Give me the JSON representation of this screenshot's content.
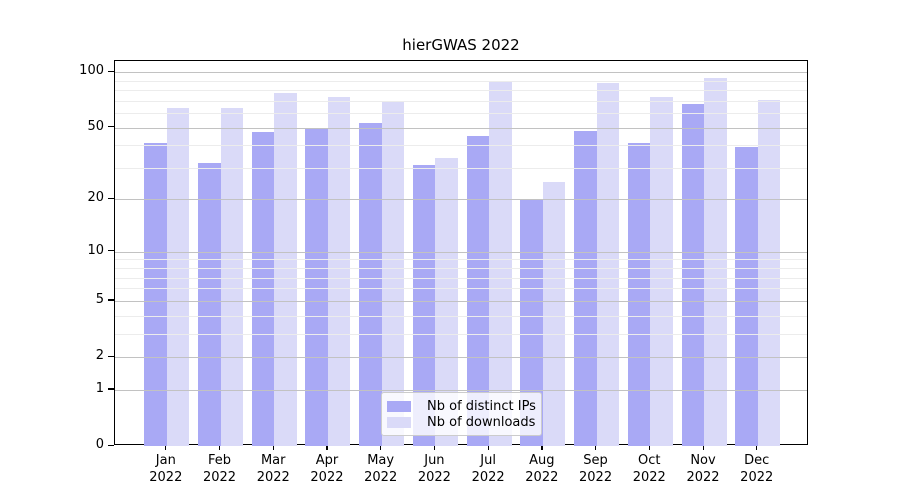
{
  "chart_data": {
    "type": "bar",
    "title": "hierGWAS 2022",
    "categories": [
      "Jan 2022",
      "Feb 2022",
      "Mar 2022",
      "Apr 2022",
      "May 2022",
      "Jun 2022",
      "Jul 2022",
      "Aug 2022",
      "Sep 2022",
      "Oct 2022",
      "Nov 2022",
      "Dec 2022"
    ],
    "series": [
      {
        "name": "Nb of distinct IPs",
        "color": "#a9a9f5",
        "values": [
          41,
          32,
          47,
          49,
          53,
          31,
          45,
          20,
          48,
          41,
          67,
          39
        ]
      },
      {
        "name": "Nb of downloads",
        "color": "#dadaf8",
        "values": [
          64,
          64,
          77,
          73,
          69,
          34,
          89,
          25,
          87,
          73,
          93,
          71
        ]
      }
    ],
    "y_axis": {
      "scale": "log1p",
      "ticks": [
        100,
        50,
        20,
        10,
        5,
        2,
        1,
        0
      ],
      "minor_gridlines": [
        3,
        4,
        6,
        7,
        8,
        9,
        30,
        40,
        60,
        70,
        80,
        90
      ],
      "ylim": [
        0,
        115
      ]
    },
    "xlabel": "",
    "ylabel": "",
    "grid": "on",
    "legend": {
      "position": "bottom-center",
      "entries": [
        "Nb of distinct IPs",
        "Nb of downloads"
      ]
    },
    "colors": {
      "major_grid": "#c2c2c2",
      "minor_grid": "#ececec",
      "spine": "#000000",
      "background": "#ffffff"
    }
  }
}
